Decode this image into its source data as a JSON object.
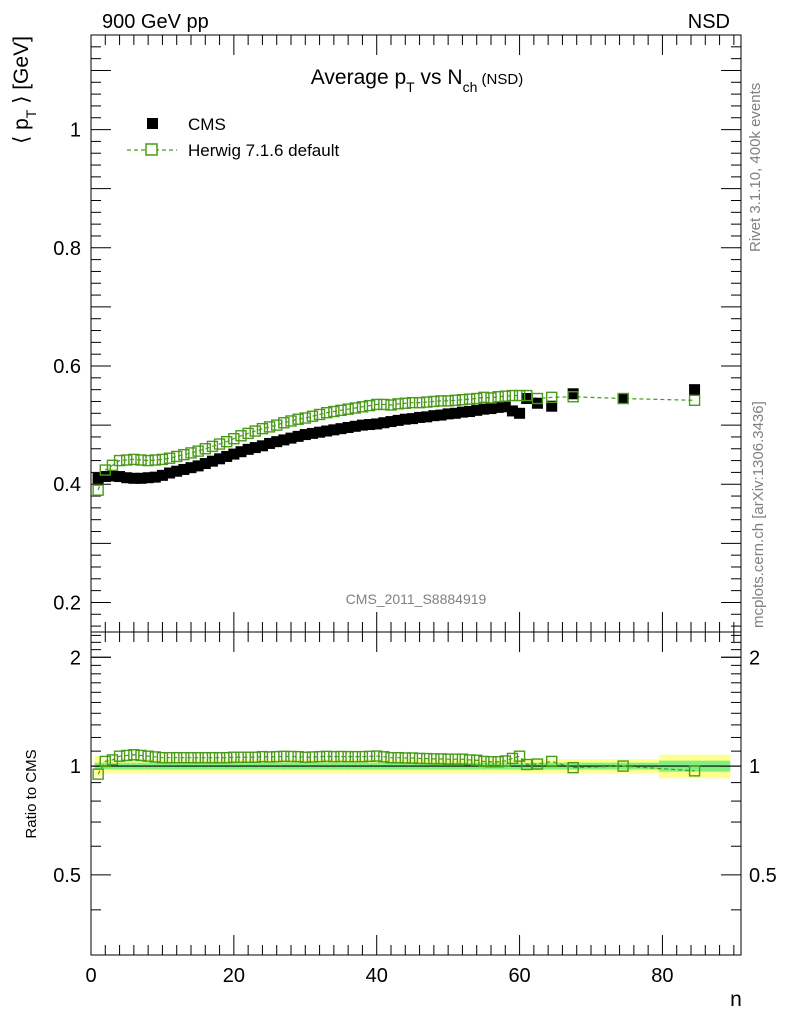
{
  "header": {
    "left": "900 GeV pp",
    "right": "NSD"
  },
  "side_texts": {
    "rivet": "Rivet 3.1.10,  400k events",
    "mcplots": "mcplots.cern.ch [arXiv:1306.3436]"
  },
  "watermark": "CMS_2011_S8884919",
  "chart_data": [
    {
      "type": "scatter",
      "title": {
        "main": "Average p",
        "sub1": "T",
        "mid": " vs N",
        "sub2": "ch",
        "tail": " (NSD)"
      },
      "ylabel": {
        "open": "⟨ p",
        "sub": "T",
        "close": " ⟩ [GeV]"
      },
      "xlabel": "n",
      "xlim": [
        0,
        91
      ],
      "ylim": [
        0.15,
        1.16
      ],
      "yticks": [
        "0.2",
        "0.4",
        "0.6",
        "0.8",
        "1"
      ],
      "xticks": [
        "0",
        "20",
        "40",
        "60",
        "80"
      ],
      "legend_position": "top-left",
      "colors": {
        "cms": "#000000",
        "herwig": "#4a9a1a"
      },
      "series": [
        {
          "name": "CMS",
          "marker": "filled-square",
          "x": [
            1,
            2,
            3,
            4,
            5,
            6,
            7,
            8,
            9,
            10,
            11,
            12,
            13,
            14,
            15,
            16,
            17,
            18,
            19,
            20,
            21,
            22,
            23,
            24,
            25,
            26,
            27,
            28,
            29,
            30,
            31,
            32,
            33,
            34,
            35,
            36,
            37,
            38,
            39,
            40,
            41,
            42,
            43,
            44,
            45,
            46,
            47,
            48,
            49,
            50,
            51,
            52,
            53,
            54,
            55,
            56,
            57,
            58,
            59,
            60,
            61,
            62.5,
            64.5,
            67.5,
            74.5,
            84.5
          ],
          "y": [
            0.41,
            0.413,
            0.414,
            0.413,
            0.411,
            0.41,
            0.41,
            0.411,
            0.412,
            0.415,
            0.419,
            0.422,
            0.425,
            0.428,
            0.431,
            0.435,
            0.439,
            0.443,
            0.447,
            0.451,
            0.455,
            0.459,
            0.462,
            0.465,
            0.469,
            0.472,
            0.475,
            0.478,
            0.481,
            0.484,
            0.486,
            0.488,
            0.49,
            0.492,
            0.494,
            0.496,
            0.498,
            0.5,
            0.501,
            0.502,
            0.504,
            0.506,
            0.508,
            0.51,
            0.511,
            0.513,
            0.514,
            0.516,
            0.517,
            0.519,
            0.52,
            0.522,
            0.523,
            0.525,
            0.527,
            0.528,
            0.53,
            0.531,
            0.524,
            0.52,
            0.545,
            0.537,
            0.532,
            0.553,
            0.545,
            0.56
          ]
        },
        {
          "name": "Herwig 7.1.6 default",
          "marker": "open-square",
          "x": [
            1,
            2,
            3,
            4,
            5,
            6,
            7,
            8,
            9,
            10,
            11,
            12,
            13,
            14,
            15,
            16,
            17,
            18,
            19,
            20,
            21,
            22,
            23,
            24,
            25,
            26,
            27,
            28,
            29,
            30,
            31,
            32,
            33,
            34,
            35,
            36,
            37,
            38,
            39,
            40,
            41,
            42,
            43,
            44,
            45,
            46,
            47,
            48,
            49,
            50,
            51,
            52,
            53,
            54,
            55,
            56,
            57,
            58,
            59,
            60,
            61,
            62.5,
            64.5,
            67.5,
            74.5,
            84.5
          ],
          "y": [
            0.39,
            0.424,
            0.432,
            0.44,
            0.441,
            0.442,
            0.441,
            0.44,
            0.441,
            0.442,
            0.444,
            0.447,
            0.45,
            0.453,
            0.456,
            0.46,
            0.464,
            0.468,
            0.472,
            0.477,
            0.482,
            0.486,
            0.49,
            0.494,
            0.497,
            0.5,
            0.504,
            0.507,
            0.51,
            0.512,
            0.515,
            0.518,
            0.521,
            0.523,
            0.525,
            0.527,
            0.529,
            0.531,
            0.533,
            0.535,
            0.535,
            0.534,
            0.536,
            0.537,
            0.538,
            0.538,
            0.539,
            0.54,
            0.541,
            0.541,
            0.542,
            0.543,
            0.544,
            0.545,
            0.547,
            0.546,
            0.548,
            0.549,
            0.55,
            0.55,
            0.55,
            0.545,
            0.547,
            0.548,
            0.545,
            0.542
          ]
        }
      ]
    },
    {
      "type": "scatter",
      "ylabel": "Ratio to CMS",
      "xlabel": "n",
      "ylim": [
        0.3,
        2.35
      ],
      "yticks": [
        "0.5",
        "1",
        "2"
      ],
      "xticks": [
        "0",
        "20",
        "40",
        "60",
        "80"
      ],
      "band_colors": {
        "inner": "#80f080",
        "outer": "#ffff90"
      },
      "series": [
        {
          "name": "Herwig 7.1.6 default",
          "x": [
            1,
            2,
            3,
            4,
            5,
            6,
            7,
            8,
            9,
            10,
            11,
            12,
            13,
            14,
            15,
            16,
            17,
            18,
            19,
            20,
            21,
            22,
            23,
            24,
            25,
            26,
            27,
            28,
            29,
            30,
            31,
            32,
            33,
            34,
            35,
            36,
            37,
            38,
            39,
            40,
            41,
            42,
            43,
            44,
            45,
            46,
            47,
            48,
            49,
            50,
            51,
            52,
            53,
            54,
            55,
            56,
            57,
            58,
            59,
            60,
            61,
            62.5,
            64.5,
            67.5,
            74.5,
            84.5
          ],
          "y": [
            0.95,
            1.03,
            1.04,
            1.065,
            1.07,
            1.075,
            1.07,
            1.065,
            1.06,
            1.055,
            1.055,
            1.055,
            1.055,
            1.055,
            1.055,
            1.055,
            1.055,
            1.055,
            1.055,
            1.058,
            1.058,
            1.058,
            1.058,
            1.062,
            1.06,
            1.062,
            1.064,
            1.063,
            1.062,
            1.058,
            1.06,
            1.062,
            1.064,
            1.062,
            1.063,
            1.062,
            1.062,
            1.062,
            1.064,
            1.066,
            1.061,
            1.055,
            1.055,
            1.053,
            1.053,
            1.05,
            1.049,
            1.047,
            1.047,
            1.045,
            1.045,
            1.045,
            1.04,
            1.038,
            1.03,
            1.028,
            1.028,
            1.033,
            1.05,
            1.065,
            1.01,
            1.013,
            1.03,
            0.99,
            1.0,
            0.97
          ]
        }
      ]
    }
  ]
}
